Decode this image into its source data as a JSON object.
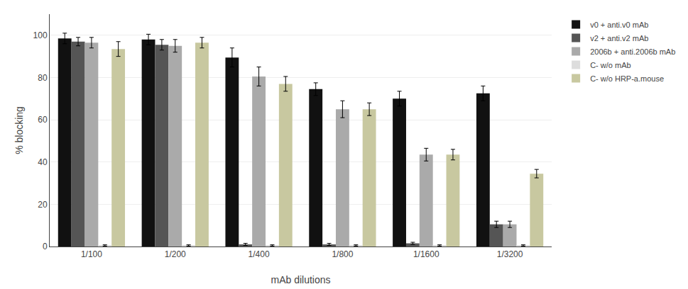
{
  "chart_data": {
    "type": "bar",
    "categories": [
      "1/100",
      "1/200",
      "1/400",
      "1/800",
      "1/1600",
      "1/3200"
    ],
    "series": [
      {
        "name": "v0 + anti.v0 mAb",
        "color": "#111111",
        "values": [
          98.5,
          98.0,
          89.5,
          74.5,
          70.0,
          72.5
        ],
        "errors": [
          2.5,
          2.5,
          4.5,
          3.0,
          3.5,
          3.5
        ]
      },
      {
        "name": "v2 + anti.v2 mAb",
        "color": "#555555",
        "values": [
          97.0,
          95.5,
          1.0,
          1.0,
          1.5,
          10.5
        ],
        "errors": [
          2.0,
          2.5,
          0.5,
          0.5,
          0.5,
          1.5
        ]
      },
      {
        "name": "2006b + anti.2006b mAb",
        "color": "#aaaaaa",
        "values": [
          96.5,
          95.0,
          80.5,
          65.0,
          43.5,
          10.5
        ],
        "errors": [
          2.5,
          3.0,
          4.5,
          4.0,
          3.0,
          1.5
        ]
      },
      {
        "name": "C- w/o mAb",
        "color": "#dddddd",
        "values": [
          0.5,
          0.5,
          0.5,
          0.5,
          0.5,
          0.5
        ],
        "errors": [
          0.3,
          0.3,
          0.3,
          0.3,
          0.3,
          0.3
        ]
      },
      {
        "name": "C- w/o HRP-a.mouse",
        "color": "#c8c8a0",
        "values": [
          93.5,
          96.5,
          77.0,
          65.0,
          43.5,
          34.5
        ],
        "errors": [
          3.5,
          2.5,
          3.5,
          3.0,
          2.5,
          2.0
        ]
      }
    ],
    "xlabel": "mAb dilutions",
    "ylabel": "% blocking",
    "ylim": [
      0,
      110
    ],
    "yticks": [
      0,
      20,
      40,
      60,
      80,
      100
    ],
    "grid": true,
    "legend": "right"
  }
}
